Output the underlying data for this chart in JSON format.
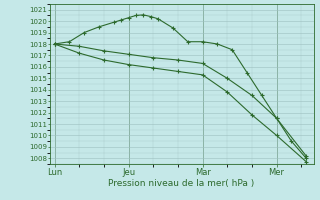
{
  "xlabel": "Pression niveau de la mer( hPa )",
  "background_color": "#c5e8e8",
  "grid_color": "#9dbfbf",
  "line_color": "#2d6a2d",
  "ylim": [
    1007.5,
    1021.5
  ],
  "yticks": [
    1008,
    1009,
    1010,
    1011,
    1012,
    1013,
    1014,
    1015,
    1016,
    1017,
    1018,
    1019,
    1020,
    1021
  ],
  "xtick_labels": [
    "Lun",
    "Jeu",
    "Mar",
    "Mer"
  ],
  "xtick_positions": [
    0,
    30,
    60,
    90
  ],
  "xlim": [
    -2,
    105
  ],
  "line1_x": [
    0,
    6,
    12,
    18,
    24,
    27,
    30,
    33,
    36,
    39,
    42,
    48,
    54,
    60,
    66,
    72,
    78,
    84,
    90,
    96,
    102
  ],
  "line1_y": [
    1018.0,
    1018.2,
    1019.0,
    1019.5,
    1019.9,
    1020.1,
    1020.3,
    1020.5,
    1020.55,
    1020.4,
    1020.2,
    1019.4,
    1018.2,
    1018.2,
    1018.0,
    1017.5,
    1015.5,
    1013.5,
    1011.5,
    1009.5,
    1008.0
  ],
  "line2_x": [
    0,
    10,
    20,
    30,
    40,
    50,
    60,
    70,
    80,
    90,
    102
  ],
  "line2_y": [
    1018.0,
    1017.8,
    1017.4,
    1017.1,
    1016.8,
    1016.6,
    1016.3,
    1015.0,
    1013.5,
    1011.5,
    1008.2
  ],
  "line3_x": [
    0,
    10,
    20,
    30,
    40,
    50,
    60,
    70,
    80,
    90,
    102
  ],
  "line3_y": [
    1018.0,
    1017.2,
    1016.6,
    1016.2,
    1015.9,
    1015.6,
    1015.3,
    1013.8,
    1011.8,
    1010.0,
    1007.7
  ],
  "vline_positions": [
    0,
    30,
    60,
    90
  ]
}
